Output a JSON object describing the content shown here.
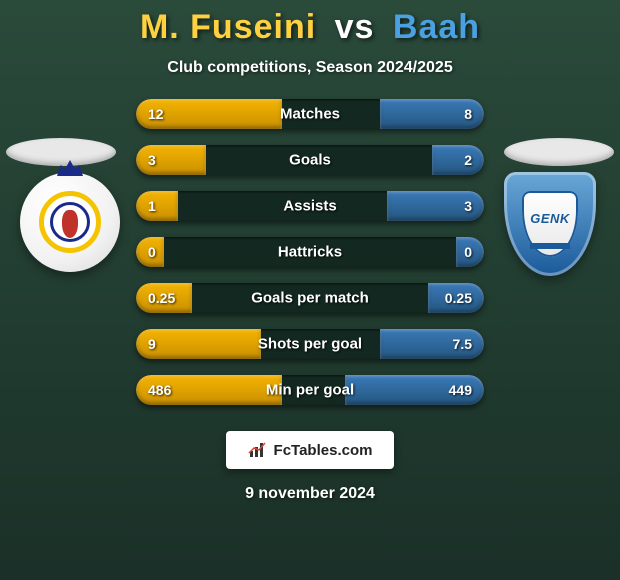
{
  "title": {
    "player1": "M. Fuseini",
    "vs": "vs",
    "player2": "Baah"
  },
  "subtitle": "Club competitions, Season 2024/2025",
  "colors": {
    "player1_bar": "#f5b400",
    "player2_bar": "#3a7ab8",
    "player1_text": "#ffd040",
    "player2_text": "#4aa0e0",
    "track": "#132820",
    "bg_top": "#2a4a3a",
    "bg_bottom": "#1a3028"
  },
  "crest_right_text": "GENK",
  "stats": [
    {
      "label": "Matches",
      "left_val": "12",
      "right_val": "8",
      "left_pct": 42,
      "right_pct": 30
    },
    {
      "label": "Goals",
      "left_val": "3",
      "right_val": "2",
      "left_pct": 20,
      "right_pct": 15
    },
    {
      "label": "Assists",
      "left_val": "1",
      "right_val": "3",
      "left_pct": 12,
      "right_pct": 28
    },
    {
      "label": "Hattricks",
      "left_val": "0",
      "right_val": "0",
      "left_pct": 8,
      "right_pct": 8
    },
    {
      "label": "Goals per match",
      "left_val": "0.25",
      "right_val": "0.25",
      "left_pct": 16,
      "right_pct": 16
    },
    {
      "label": "Shots per goal",
      "left_val": "9",
      "right_val": "7.5",
      "left_pct": 36,
      "right_pct": 30
    },
    {
      "label": "Min per goal",
      "left_val": "486",
      "right_val": "449",
      "left_pct": 42,
      "right_pct": 40
    }
  ],
  "footer_brand": "FcTables.com",
  "date": "9 november 2024"
}
